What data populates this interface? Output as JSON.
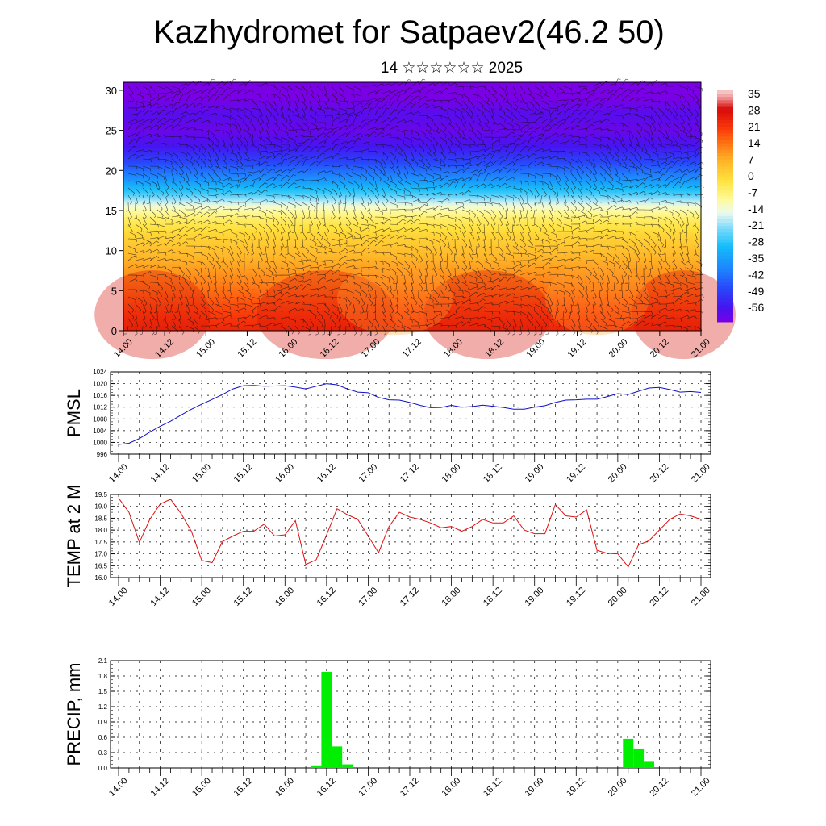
{
  "title": "Kazhydromet for Satpaev2(46.2 50)",
  "subtitle": "14 ☆☆☆☆☆☆ 2025",
  "colors": {
    "pmsl_line": "#1010c8",
    "temp_line": "#e01010",
    "precip_bar": "#00ee00",
    "axis": "#000000"
  },
  "chart_data": [
    {
      "id": "cross_section",
      "type": "heatmap",
      "title": "",
      "xlabel": "",
      "ylabel": "",
      "x_ticks": [
        "14.00",
        "14.12",
        "15.00",
        "15.12",
        "16.00",
        "16.12",
        "17.00",
        "17.12",
        "18.00",
        "18.12",
        "19.00",
        "19.12",
        "20.00",
        "20.12",
        "21.00"
      ],
      "ylim": [
        0,
        31
      ],
      "y_ticks": [
        "0",
        "5",
        "10",
        "15",
        "20",
        "25",
        "30"
      ],
      "colorbar_labels": [
        "35",
        "28",
        "21",
        "14",
        "7",
        "0",
        "-7",
        "-14",
        "-21",
        "-28",
        "-35",
        "-42",
        "-49",
        "-56"
      ],
      "colorbar_range": [
        -60,
        38
      ],
      "overlay": "wind barbs",
      "temperature_profile": [
        {
          "z": 0,
          "t": 25
        },
        {
          "z": 3,
          "t": 20
        },
        {
          "z": 6,
          "t": 14
        },
        {
          "z": 9,
          "t": 8
        },
        {
          "z": 12,
          "t": 2
        },
        {
          "z": 14,
          "t": -4
        },
        {
          "z": 15.5,
          "t": -12
        },
        {
          "z": 17,
          "t": -24
        },
        {
          "z": 19,
          "t": -36
        },
        {
          "z": 21,
          "t": -46
        },
        {
          "z": 23,
          "t": -54
        },
        {
          "z": 25,
          "t": -58
        },
        {
          "z": 27,
          "t": -56
        },
        {
          "z": 29,
          "t": -60
        },
        {
          "z": 31,
          "t": -60
        }
      ]
    },
    {
      "id": "pmsl",
      "type": "line",
      "title": "",
      "xlabel": "",
      "ylabel": "PMSL",
      "ylim": [
        996,
        1024
      ],
      "y_ticks": [
        "996",
        "1000",
        "1004",
        "1008",
        "1012",
        "1016",
        "1020",
        "1024"
      ],
      "x_ticks": [
        "14.00",
        "14.12",
        "15.00",
        "15.12",
        "16.00",
        "16.12",
        "17.00",
        "17.12",
        "18.00",
        "18.12",
        "19.00",
        "19.12",
        "20.00",
        "20.12",
        "21.00"
      ],
      "x_unit": "hours from 14.00",
      "series": [
        {
          "x": [
            0,
            3,
            6,
            9,
            12,
            15,
            18,
            21,
            24,
            27,
            30,
            33,
            36,
            39,
            42,
            45,
            48,
            51,
            54,
            57,
            60,
            63,
            66,
            69,
            72,
            75,
            78,
            81,
            84,
            87,
            90,
            93,
            96,
            99,
            102,
            105,
            108,
            111,
            114,
            117,
            120,
            123,
            126,
            129,
            132,
            135,
            138,
            141,
            144,
            147,
            150,
            153,
            156,
            159,
            162,
            165,
            168
          ],
          "values": [
            999.3,
            999.7,
            1001.3,
            1003.5,
            1005.5,
            1007.2,
            1009.3,
            1011.3,
            1013.0,
            1014.6,
            1016.3,
            1018.2,
            1019.3,
            1019.4,
            1019.1,
            1019.2,
            1019.3,
            1018.8,
            1018.2,
            1019.1,
            1020.0,
            1019.6,
            1018.2,
            1017.1,
            1016.9,
            1015.3,
            1014.5,
            1014.4,
            1013.6,
            1012.6,
            1011.8,
            1011.9,
            1012.6,
            1012.0,
            1012.2,
            1012.7,
            1012.3,
            1011.9,
            1011.3,
            1011.3,
            1012.0,
            1012.5,
            1013.6,
            1014.4,
            1014.5,
            1014.7,
            1014.7,
            1015.6,
            1016.6,
            1016.3,
            1017.4,
            1018.5,
            1018.7,
            1018.0,
            1017.1,
            1017.3,
            1017.0
          ]
        }
      ]
    },
    {
      "id": "temp2m",
      "type": "line",
      "title": "",
      "xlabel": "",
      "ylabel": "TEMP at 2 M",
      "ylim": [
        16.0,
        19.5
      ],
      "y_ticks": [
        "16.0",
        "16.5",
        "17.0",
        "17.5",
        "18.0",
        "18.5",
        "19.0",
        "19.5"
      ],
      "x_ticks": [
        "14.00",
        "14.12",
        "15.00",
        "15.12",
        "16.00",
        "16.12",
        "17.00",
        "17.12",
        "18.00",
        "18.12",
        "19.00",
        "19.12",
        "20.00",
        "20.12",
        "21.00"
      ],
      "x_unit": "hours from 14.00",
      "series": [
        {
          "x": [
            0,
            3,
            6,
            9,
            12,
            15,
            18,
            21,
            24,
            27,
            30,
            33,
            36,
            39,
            42,
            45,
            48,
            51,
            54,
            57,
            60,
            63,
            66,
            69,
            72,
            75,
            78,
            81,
            84,
            87,
            90,
            93,
            96,
            99,
            102,
            105,
            108,
            111,
            114,
            117,
            120,
            123,
            126,
            129,
            132,
            135,
            138,
            141,
            144,
            147,
            150,
            153,
            156,
            159,
            162,
            165,
            168
          ],
          "values": [
            19.35,
            18.75,
            17.48,
            18.45,
            19.1,
            19.3,
            18.7,
            17.95,
            16.72,
            16.63,
            17.52,
            17.75,
            17.95,
            17.95,
            18.25,
            17.75,
            17.8,
            18.4,
            16.55,
            16.75,
            17.8,
            18.9,
            18.65,
            18.45,
            17.75,
            17.05,
            18.15,
            18.75,
            18.55,
            18.45,
            18.3,
            18.1,
            18.15,
            17.95,
            18.15,
            18.45,
            18.3,
            18.3,
            18.6,
            18.0,
            17.85,
            17.85,
            19.08,
            18.6,
            18.55,
            18.85,
            17.15,
            17.02,
            17.0,
            16.45,
            17.38,
            17.55,
            18.0,
            18.45,
            18.68,
            18.6,
            18.45
          ]
        }
      ]
    },
    {
      "id": "precip",
      "type": "bar",
      "title": "",
      "xlabel": "",
      "ylabel": "PRECIP, mm",
      "ylim": [
        0,
        2.1
      ],
      "y_ticks": [
        "0.0",
        "0.3",
        "0.6",
        "0.9",
        "1.2",
        "1.5",
        "1.8",
        "2.1"
      ],
      "x_ticks": [
        "14.00",
        "14.12",
        "15.00",
        "15.12",
        "16.00",
        "16.12",
        "17.00",
        "17.12",
        "18.00",
        "18.12",
        "19.00",
        "19.12",
        "20.00",
        "20.12",
        "21.00"
      ],
      "x_unit": "hours from 14.00",
      "series": [
        {
          "x": [
            57,
            60,
            63,
            66,
            147,
            150,
            153
          ],
          "values": [
            0.05,
            1.88,
            0.42,
            0.07,
            0.57,
            0.38,
            0.12
          ]
        }
      ]
    }
  ]
}
